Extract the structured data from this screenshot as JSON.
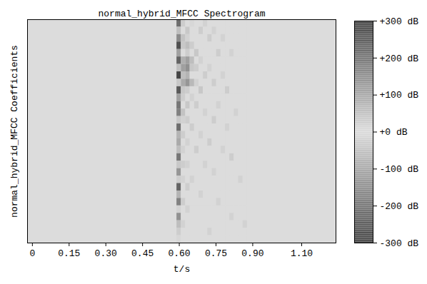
{
  "chart_data": {
    "type": "heatmap",
    "title": "normal_hybrid_MFCC Spectrogram",
    "xlabel": "t/s",
    "ylabel": "normal_hybrid_MFCC Coefficients",
    "tick_labels": "x",
    "xlim": [
      -0.02,
      1.24
    ],
    "xticks": [
      0,
      0.15,
      {
        "value": 0.3,
        "label": "0.30"
      },
      0.45,
      {
        "value": 0.6,
        "label": "0.60"
      },
      0.75,
      {
        "value": 0.9,
        "label": "0.90"
      },
      {
        "value": 1.1,
        "label": "1.10"
      }
    ],
    "x_bins": [
      0.59,
      0.608,
      0.626,
      0.644,
      0.662,
      0.68,
      0.698,
      0.716,
      0.734,
      0.752,
      0.77,
      0.788,
      0.806,
      0.824,
      0.842,
      0.86,
      0.878
    ],
    "fill_value": 0,
    "values": [
      [
        220,
        30,
        0,
        10,
        0,
        0,
        20,
        0,
        0,
        0,
        0,
        0,
        0,
        0,
        0,
        0
      ],
      [
        -60,
        0,
        40,
        0,
        0,
        30,
        0,
        0,
        20,
        0,
        0,
        0,
        0,
        0,
        0,
        0
      ],
      [
        160,
        50,
        20,
        0,
        0,
        0,
        0,
        30,
        0,
        0,
        20,
        0,
        0,
        0,
        0,
        0
      ],
      [
        280,
        40,
        60,
        30,
        0,
        0,
        0,
        0,
        0,
        0,
        0,
        0,
        0,
        0,
        0,
        0
      ],
      [
        -120,
        0,
        30,
        0,
        40,
        0,
        0,
        0,
        0,
        30,
        0,
        0,
        20,
        0,
        0,
        0
      ],
      [
        240,
        90,
        120,
        60,
        0,
        20,
        0,
        0,
        0,
        0,
        0,
        0,
        0,
        0,
        0,
        0
      ],
      [
        60,
        120,
        150,
        40,
        30,
        0,
        0,
        20,
        0,
        0,
        0,
        0,
        0,
        0,
        0,
        0
      ],
      [
        300,
        60,
        80,
        0,
        0,
        0,
        30,
        0,
        0,
        0,
        20,
        0,
        0,
        0,
        0,
        0
      ],
      [
        -40,
        100,
        140,
        70,
        20,
        0,
        0,
        0,
        30,
        0,
        0,
        0,
        0,
        0,
        0,
        0
      ],
      [
        260,
        40,
        30,
        0,
        0,
        40,
        0,
        0,
        0,
        0,
        0,
        30,
        0,
        0,
        0,
        0
      ],
      [
        120,
        30,
        0,
        20,
        0,
        0,
        0,
        0,
        0,
        0,
        0,
        0,
        0,
        0,
        0,
        0
      ],
      [
        -200,
        0,
        40,
        0,
        30,
        0,
        0,
        0,
        0,
        20,
        0,
        0,
        0,
        0,
        0,
        0
      ],
      [
        180,
        50,
        0,
        0,
        0,
        0,
        20,
        0,
        0,
        0,
        0,
        0,
        0,
        20,
        0,
        0
      ],
      [
        40,
        20,
        30,
        0,
        0,
        0,
        0,
        0,
        30,
        0,
        0,
        0,
        0,
        0,
        0,
        0
      ],
      [
        220,
        0,
        0,
        30,
        0,
        0,
        0,
        0,
        0,
        0,
        0,
        20,
        0,
        0,
        0,
        0
      ],
      [
        -80,
        30,
        0,
        0,
        0,
        20,
        0,
        0,
        0,
        0,
        0,
        0,
        0,
        0,
        0,
        0
      ],
      [
        100,
        0,
        20,
        0,
        0,
        0,
        0,
        30,
        0,
        0,
        0,
        0,
        0,
        0,
        0,
        0
      ],
      [
        60,
        20,
        0,
        0,
        30,
        0,
        0,
        0,
        0,
        0,
        20,
        0,
        0,
        0,
        0,
        0
      ],
      [
        200,
        0,
        0,
        0,
        0,
        0,
        0,
        0,
        0,
        0,
        0,
        0,
        30,
        0,
        0,
        0
      ],
      [
        -40,
        30,
        20,
        0,
        0,
        0,
        20,
        0,
        0,
        0,
        0,
        0,
        0,
        0,
        0,
        0
      ],
      [
        140,
        0,
        0,
        0,
        0,
        0,
        0,
        0,
        20,
        0,
        0,
        0,
        0,
        0,
        0,
        0
      ],
      [
        30,
        20,
        0,
        20,
        0,
        0,
        0,
        0,
        0,
        0,
        0,
        0,
        0,
        0,
        20,
        0
      ],
      [
        240,
        0,
        30,
        0,
        0,
        0,
        0,
        0,
        0,
        0,
        0,
        0,
        0,
        0,
        0,
        0
      ],
      [
        80,
        0,
        0,
        0,
        0,
        20,
        0,
        0,
        0,
        0,
        0,
        0,
        0,
        0,
        0,
        0
      ],
      [
        180,
        30,
        0,
        0,
        0,
        0,
        0,
        0,
        0,
        20,
        0,
        0,
        0,
        0,
        0,
        0
      ],
      [
        20,
        0,
        20,
        0,
        0,
        0,
        0,
        0,
        0,
        0,
        0,
        0,
        0,
        0,
        0,
        0
      ],
      [
        150,
        0,
        0,
        0,
        0,
        0,
        0,
        0,
        0,
        0,
        0,
        0,
        20,
        0,
        0,
        0
      ],
      [
        60,
        20,
        0,
        0,
        0,
        0,
        0,
        0,
        0,
        0,
        0,
        0,
        0,
        0,
        0,
        20
      ],
      [
        30,
        0,
        0,
        0,
        0,
        0,
        0,
        20,
        0,
        0,
        0,
        0,
        0,
        0,
        0,
        0
      ],
      [
        10,
        0,
        0,
        0,
        0,
        0,
        0,
        0,
        0,
        0,
        0,
        0,
        0,
        0,
        0,
        0
      ]
    ],
    "colorbar": {
      "range": [
        -300,
        300
      ],
      "ticks": [
        {
          "value": 300,
          "label": "+300 dB"
        },
        {
          "value": 200,
          "label": "+200 dB"
        },
        {
          "value": 100,
          "label": "+100 dB"
        },
        {
          "value": 0,
          "label": "+0 dB"
        },
        {
          "value": -100,
          "label": "-100 dB"
        },
        {
          "value": -200,
          "label": "-200 dB"
        },
        {
          "value": -300,
          "label": "-300 dB"
        }
      ]
    }
  }
}
